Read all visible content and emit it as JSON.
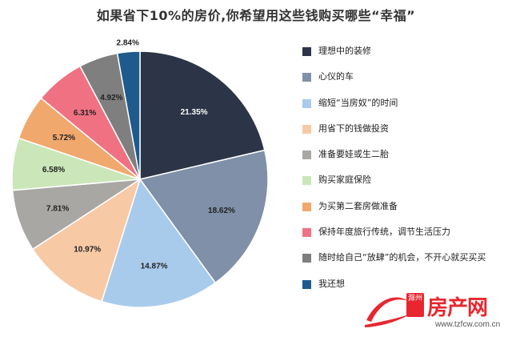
{
  "chart_data": {
    "type": "pie",
    "title": "如果省下10%的房价,你希望用这些钱购买哪些“幸福”",
    "legend_position": "right",
    "slices": [
      {
        "label": "理想中的装修",
        "value": 21.35,
        "value_label": "21.35%",
        "color": "#2c3547"
      },
      {
        "label": "心仪的车",
        "value": 18.62,
        "value_label": "18.62%",
        "color": "#7f90a8"
      },
      {
        "label": "缩短“当房奴”的时间",
        "value": 14.87,
        "value_label": "14.87%",
        "color": "#a9cbeb"
      },
      {
        "label": "用省下的钱做投资",
        "value": 10.97,
        "value_label": "10.97%",
        "color": "#f7c9a5"
      },
      {
        "label": "准备要娃或生二胎",
        "value": 7.81,
        "value_label": "7.81%",
        "color": "#a8a7a4"
      },
      {
        "label": "购买家庭保险",
        "value": 6.58,
        "value_label": "6.58%",
        "color": "#cbe7b9"
      },
      {
        "label": "为买第二套房做准备",
        "value": 5.72,
        "value_label": "5.72%",
        "color": "#f0a86d"
      },
      {
        "label": "保持年度旅行传统，调节生活压力",
        "value": 6.31,
        "value_label": "6.31%",
        "color": "#f07182"
      },
      {
        "label": "随时给自己“放肆”的机会，不开心就买买买",
        "value": 4.92,
        "value_label": "4.92%",
        "color": "#7f7f7f"
      },
      {
        "label": "我还想",
        "value": 2.84,
        "value_label": "2.84%",
        "color": "#1f5a8c"
      }
    ]
  },
  "watermark": {
    "badge": "滁州",
    "brand": "房产网",
    "url": "www.tzfcw.com.cn"
  }
}
